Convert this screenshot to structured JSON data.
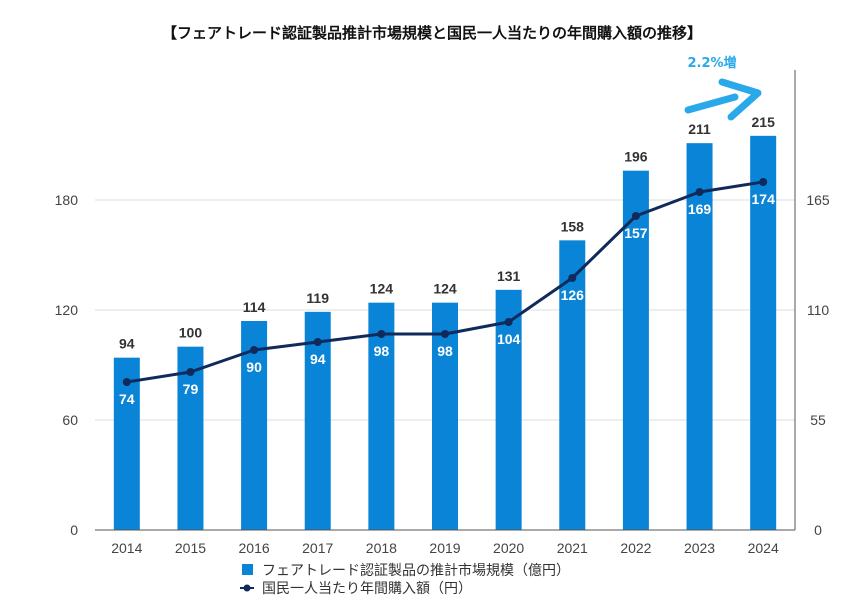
{
  "chart_data": {
    "type": "bar",
    "title": "【フェアトレード認証製品推計市場規模と国民一人当たりの年間購入額の推移】",
    "categories": [
      "2014",
      "2015",
      "2016",
      "2017",
      "2018",
      "2019",
      "2020",
      "2021",
      "2022",
      "2023",
      "2024"
    ],
    "series": [
      {
        "name": "フェアトレード認証製品の推計市場規模（億円）",
        "type": "bar",
        "axis": "left",
        "values": [
          94,
          100,
          114,
          119,
          124,
          124,
          131,
          158,
          196,
          211,
          215
        ],
        "color": "#0a84d6"
      },
      {
        "name": "国民一人当たり年間購入額（円）",
        "type": "line",
        "axis": "right",
        "values": [
          74,
          79,
          90,
          94,
          98,
          98,
          104,
          126,
          157,
          169,
          174
        ],
        "color": "#102a5c"
      }
    ],
    "left_axis": {
      "ticks": [
        "0",
        "60",
        "120",
        "180"
      ],
      "range": [
        0,
        240
      ]
    },
    "right_axis": {
      "ticks": [
        "0",
        "55",
        "110",
        "165"
      ],
      "range": [
        0,
        220
      ]
    },
    "grid": true,
    "legend_position": "bottom-left",
    "annotation": {
      "text": "2.2%増",
      "color": "#29a8ea"
    }
  }
}
